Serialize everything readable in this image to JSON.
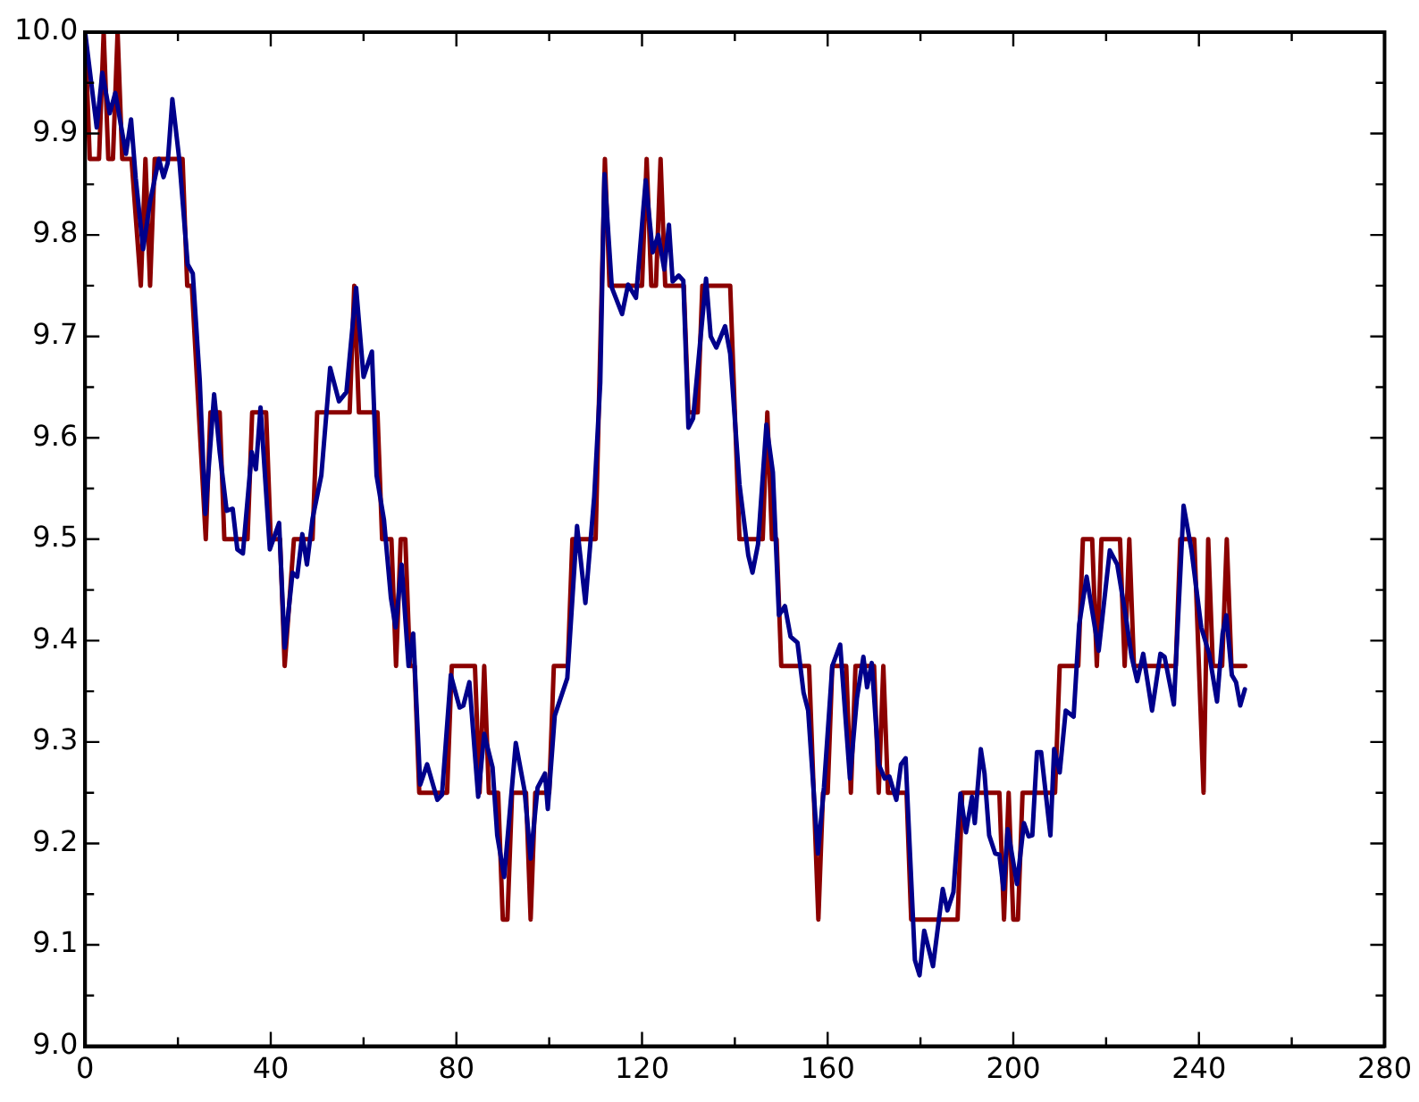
{
  "chart_data": {
    "type": "line",
    "xlim": [
      0,
      280
    ],
    "ylim": [
      9.0,
      10.0
    ],
    "xticks": [
      0,
      {
        "value": 20,
        "label": null
      },
      40,
      {
        "value": 60,
        "label": null
      },
      80,
      {
        "value": 100,
        "label": null
      },
      120,
      {
        "value": 140,
        "label": null
      },
      160,
      {
        "value": 180,
        "label": null
      },
      200,
      {
        "value": 220,
        "label": null
      },
      240,
      {
        "value": 260,
        "label": null
      },
      280
    ],
    "yticks": [
      {
        "value": 9.0,
        "label": "9.0"
      },
      {
        "value": 9.05,
        "label": null
      },
      {
        "value": 9.1,
        "label": "9.1"
      },
      {
        "value": 9.15,
        "label": null
      },
      {
        "value": 9.2,
        "label": "9.2"
      },
      {
        "value": 9.25,
        "label": null
      },
      {
        "value": 9.3,
        "label": "9.3"
      },
      {
        "value": 9.35,
        "label": null
      },
      {
        "value": 9.4,
        "label": "9.4"
      },
      {
        "value": 9.45,
        "label": null
      },
      {
        "value": 9.5,
        "label": "9.5"
      },
      {
        "value": 9.55,
        "label": null
      },
      {
        "value": 9.6,
        "label": "9.6"
      },
      {
        "value": 9.65,
        "label": null
      },
      {
        "value": 9.7,
        "label": "9.7"
      },
      {
        "value": 9.75,
        "label": null
      },
      {
        "value": 9.8,
        "label": "9.8"
      },
      {
        "value": 9.85,
        "label": null
      },
      {
        "value": 9.9,
        "label": "9.9"
      },
      {
        "value": 9.95,
        "label": null
      },
      {
        "value": 10.0,
        "label": "10.0"
      }
    ],
    "marker": "none",
    "line_style": "solid",
    "legend": false,
    "series": [
      {
        "color": "#00008b",
        "x": [
          0,
          2.5,
          3.7,
          5.3,
          6.5,
          8.8,
          9.9,
          10.9,
          12.5,
          14,
          15.9,
          16.9,
          17.8,
          18.8,
          20.3,
          22.1,
          23.2,
          24.7,
          25.9,
          27.8,
          29,
          30.5,
          31.8,
          32.8,
          34,
          35.9,
          36.8,
          37.8,
          39.8,
          41.8,
          43,
          44.7,
          45.7,
          46.8,
          47.8,
          49,
          50.9,
          52.8,
          54.7,
          56.3,
          58.4,
          60,
          61.8,
          62.8,
          64.4,
          65.9,
          66.9,
          68.2,
          69.7,
          70.7,
          72.2,
          73.7,
          75.9,
          76.9,
          78.8,
          80.7,
          81.5,
          82.8,
          84.7,
          86,
          87.8,
          88.8,
          90.3,
          92.8,
          94.7,
          96,
          97.5,
          99.1,
          99.7,
          101.2,
          103.9,
          106,
          107.8,
          109.7,
          111,
          111.9,
          113.5,
          115.7,
          117,
          118.7,
          120.8,
          122.3,
          123.5,
          124.8,
          125.8,
          126.6,
          127.9,
          128.9,
          130,
          131,
          132.3,
          133.8,
          134.8,
          136,
          137.9,
          139,
          141,
          142.9,
          143.8,
          145,
          146.8,
          148.2,
          149.5,
          150.8,
          152,
          153.5,
          154.8,
          155.8,
          157.9,
          159.2,
          161,
          162.7,
          164.8,
          166.3,
          167.7,
          168.5,
          169.5,
          171,
          172.3,
          173.3,
          174.8,
          175.8,
          176.8,
          178.8,
          179.8,
          180.8,
          182.7,
          184.8,
          185.8,
          187.1,
          188.6,
          189.8,
          191.1,
          191.7,
          193,
          193.8,
          194.8,
          196.1,
          197,
          197.9,
          198.8,
          200.8,
          202.3,
          203.3,
          204.1,
          205.1,
          206,
          208,
          208.8,
          210,
          211.3,
          213,
          214.2,
          215.8,
          218.4,
          220.8,
          222.4,
          224.2,
          225.5,
          226.7,
          228,
          229.9,
          231.7,
          232.6,
          234.6,
          236.7,
          238.4,
          240.5,
          242.2,
          243.9,
          245.1,
          245.9,
          247.1,
          248,
          248.9,
          249.9
        ],
        "values": [
          10.0,
          9.906,
          9.96,
          9.92,
          9.94,
          9.88,
          9.914,
          9.856,
          9.786,
          9.833,
          9.875,
          9.857,
          9.871,
          9.934,
          9.874,
          9.771,
          9.762,
          9.657,
          9.525,
          9.643,
          9.586,
          9.528,
          9.53,
          9.49,
          9.486,
          9.586,
          9.569,
          9.63,
          9.49,
          9.516,
          9.393,
          9.467,
          9.463,
          9.505,
          9.475,
          9.52,
          9.563,
          9.669,
          9.636,
          9.645,
          9.748,
          9.66,
          9.685,
          9.563,
          9.519,
          9.442,
          9.413,
          9.475,
          9.375,
          9.407,
          9.258,
          9.278,
          9.243,
          9.248,
          9.366,
          9.334,
          9.336,
          9.359,
          9.246,
          9.308,
          9.275,
          9.208,
          9.167,
          9.299,
          9.252,
          9.185,
          9.255,
          9.269,
          9.234,
          9.326,
          9.363,
          9.513,
          9.437,
          9.542,
          9.654,
          9.86,
          9.748,
          9.722,
          9.751,
          9.738,
          9.854,
          9.783,
          9.8,
          9.766,
          9.81,
          9.754,
          9.76,
          9.755,
          9.61,
          9.619,
          9.683,
          9.757,
          9.7,
          9.689,
          9.71,
          9.683,
          9.554,
          9.484,
          9.467,
          9.495,
          9.613,
          9.566,
          9.425,
          9.434,
          9.404,
          9.398,
          9.349,
          9.331,
          9.19,
          9.255,
          9.375,
          9.396,
          9.264,
          9.343,
          9.384,
          9.354,
          9.378,
          9.278,
          9.264,
          9.266,
          9.243,
          9.278,
          9.284,
          9.085,
          9.07,
          9.114,
          9.079,
          9.155,
          9.134,
          9.152,
          9.249,
          9.211,
          9.246,
          9.22,
          9.293,
          9.269,
          9.208,
          9.19,
          9.189,
          9.155,
          9.214,
          9.16,
          9.22,
          9.207,
          9.208,
          9.29,
          9.29,
          9.208,
          9.293,
          9.27,
          9.331,
          9.325,
          9.416,
          9.463,
          9.39,
          9.489,
          9.475,
          9.425,
          9.384,
          9.36,
          9.387,
          9.331,
          9.387,
          9.384,
          9.337,
          9.533,
          9.489,
          9.413,
          9.387,
          9.34,
          9.407,
          9.425,
          9.366,
          9.359,
          9.336,
          9.352
        ]
      },
      {
        "color": "#8b0000",
        "x": [
          0,
          1,
          3,
          4,
          5,
          6,
          7,
          8,
          10,
          12,
          13,
          14,
          15,
          21,
          22,
          23,
          26,
          27,
          29,
          30,
          35,
          36,
          39,
          40,
          42,
          43,
          45,
          49,
          50,
          57,
          58,
          59,
          63,
          64,
          66,
          67,
          68,
          69,
          70,
          71,
          72,
          78,
          79,
          84,
          85,
          86,
          87,
          89,
          90,
          91,
          92,
          95,
          96,
          97,
          100,
          101,
          104,
          105,
          110,
          112,
          113,
          120,
          121,
          122,
          123,
          124,
          125,
          129,
          130,
          132,
          133,
          139,
          141,
          146,
          147,
          148,
          149,
          150,
          156,
          158,
          159,
          160,
          161,
          164,
          165,
          166,
          170,
          171,
          172,
          173,
          177,
          178,
          188,
          189,
          197,
          198,
          199,
          200,
          201,
          202,
          209,
          210,
          214,
          215,
          217,
          218,
          219,
          223,
          224,
          225,
          226,
          235,
          236,
          239,
          241,
          242,
          243,
          245,
          246,
          247,
          250
        ],
        "values": [
          10.0,
          9.875,
          9.875,
          10.0,
          9.875,
          9.875,
          10.0,
          9.875,
          9.875,
          9.75,
          9.875,
          9.75,
          9.875,
          9.875,
          9.75,
          9.75,
          9.5,
          9.625,
          9.625,
          9.5,
          9.5,
          9.625,
          9.625,
          9.5,
          9.5,
          9.375,
          9.5,
          9.5,
          9.625,
          9.625,
          9.75,
          9.625,
          9.625,
          9.5,
          9.5,
          9.375,
          9.5,
          9.5,
          9.375,
          9.375,
          9.25,
          9.25,
          9.375,
          9.375,
          9.25,
          9.375,
          9.25,
          9.25,
          9.125,
          9.125,
          9.25,
          9.25,
          9.125,
          9.25,
          9.25,
          9.375,
          9.375,
          9.5,
          9.5,
          9.875,
          9.75,
          9.75,
          9.875,
          9.75,
          9.75,
          9.875,
          9.75,
          9.75,
          9.625,
          9.625,
          9.75,
          9.75,
          9.5,
          9.5,
          9.625,
          9.5,
          9.5,
          9.375,
          9.375,
          9.125,
          9.25,
          9.25,
          9.375,
          9.375,
          9.25,
          9.375,
          9.375,
          9.25,
          9.375,
          9.25,
          9.25,
          9.125,
          9.125,
          9.25,
          9.25,
          9.125,
          9.25,
          9.125,
          9.125,
          9.25,
          9.25,
          9.375,
          9.375,
          9.5,
          9.5,
          9.375,
          9.5,
          9.5,
          9.375,
          9.5,
          9.375,
          9.375,
          9.5,
          9.5,
          9.25,
          9.5,
          9.375,
          9.375,
          9.5,
          9.375,
          9.375
        ]
      }
    ]
  }
}
